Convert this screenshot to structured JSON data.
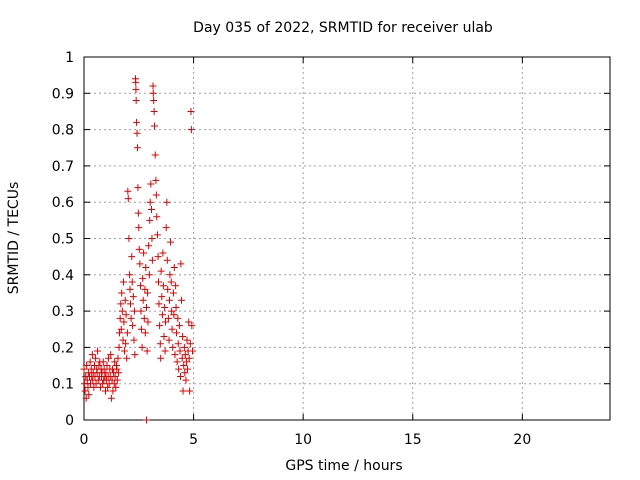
{
  "chart_data": {
    "type": "scatter",
    "title": "Day 035 of 2022, SRMTID for receiver ulab",
    "xlabel": "GPS time / hours",
    "ylabel": "SRMTID / TECUs",
    "xlim": [
      0,
      24
    ],
    "ylim": [
      0,
      1
    ],
    "xticks": [
      0,
      5,
      10,
      15,
      20
    ],
    "xtick_labels": [
      "0",
      "5",
      "10",
      "15",
      "20"
    ],
    "yticks": [
      0,
      0.1,
      0.2,
      0.3,
      0.4,
      0.5,
      0.6,
      0.7,
      0.8,
      0.9,
      1
    ],
    "ytick_labels": [
      "0",
      "0.1",
      "0.2",
      "0.3",
      "0.4",
      "0.5",
      "0.6",
      "0.7",
      "0.8",
      "0.9",
      "1"
    ],
    "grid": true,
    "marker": "+",
    "series": [
      {
        "name": "SRMTID",
        "color": "#e00000",
        "points": [
          [
            0.0,
            0.14
          ],
          [
            0.02,
            0.1
          ],
          [
            0.05,
            0.08
          ],
          [
            0.08,
            0.12
          ],
          [
            0.1,
            0.06
          ],
          [
            0.12,
            0.15
          ],
          [
            0.15,
            0.11
          ],
          [
            0.18,
            0.09
          ],
          [
            0.2,
            0.13
          ],
          [
            0.22,
            0.07
          ],
          [
            0.25,
            0.12
          ],
          [
            0.28,
            0.16
          ],
          [
            0.3,
            0.1
          ],
          [
            0.33,
            0.14
          ],
          [
            0.35,
            0.12
          ],
          [
            0.38,
            0.18
          ],
          [
            0.4,
            0.11
          ],
          [
            0.42,
            0.13
          ],
          [
            0.45,
            0.09
          ],
          [
            0.48,
            0.15
          ],
          [
            0.5,
            0.12
          ],
          [
            0.52,
            0.17
          ],
          [
            0.55,
            0.1
          ],
          [
            0.58,
            0.14
          ],
          [
            0.6,
            0.13
          ],
          [
            0.62,
            0.19
          ],
          [
            0.65,
            0.11
          ],
          [
            0.68,
            0.15
          ],
          [
            0.7,
            0.12
          ],
          [
            0.72,
            0.16
          ],
          [
            0.75,
            0.09
          ],
          [
            0.78,
            0.14
          ],
          [
            0.8,
            0.12
          ],
          [
            0.82,
            0.13
          ],
          [
            0.85,
            0.1
          ],
          [
            0.88,
            0.16
          ],
          [
            0.9,
            0.11
          ],
          [
            0.92,
            0.14
          ],
          [
            0.95,
            0.12
          ],
          [
            0.98,
            0.08
          ],
          [
            1.0,
            0.13
          ],
          [
            1.02,
            0.11
          ],
          [
            1.05,
            0.15
          ],
          [
            1.08,
            0.09
          ],
          [
            1.1,
            0.12
          ],
          [
            1.12,
            0.17
          ],
          [
            1.15,
            0.1
          ],
          [
            1.18,
            0.14
          ],
          [
            1.2,
            0.12
          ],
          [
            1.22,
            0.18
          ],
          [
            1.25,
            0.06
          ],
          [
            1.28,
            0.11
          ],
          [
            1.3,
            0.14
          ],
          [
            1.32,
            0.08
          ],
          [
            1.35,
            0.13
          ],
          [
            1.38,
            0.1
          ],
          [
            1.4,
            0.16
          ],
          [
            1.42,
            0.12
          ],
          [
            1.45,
            0.09
          ],
          [
            1.48,
            0.15
          ],
          [
            1.5,
            0.14
          ],
          [
            1.52,
            0.11
          ],
          [
            1.55,
            0.17
          ],
          [
            1.58,
            0.13
          ],
          [
            1.6,
            0.2
          ],
          [
            1.62,
            0.24
          ],
          [
            1.65,
            0.28
          ],
          [
            1.68,
            0.32
          ],
          [
            1.7,
            0.25
          ],
          [
            1.72,
            0.35
          ],
          [
            1.75,
            0.3
          ],
          [
            1.78,
            0.22
          ],
          [
            1.8,
            0.38
          ],
          [
            1.82,
            0.27
          ],
          [
            1.85,
            0.19
          ],
          [
            1.88,
            0.33
          ],
          [
            1.9,
            0.21
          ],
          [
            1.92,
            0.29
          ],
          [
            1.95,
            0.17
          ],
          [
            1.98,
            0.24
          ],
          [
            2.0,
            0.63
          ],
          [
            2.02,
            0.61
          ],
          [
            2.05,
            0.5
          ],
          [
            2.08,
            0.4
          ],
          [
            2.1,
            0.36
          ],
          [
            2.12,
            0.32
          ],
          [
            2.15,
            0.28
          ],
          [
            2.18,
            0.45
          ],
          [
            2.2,
            0.38
          ],
          [
            2.22,
            0.26
          ],
          [
            2.25,
            0.34
          ],
          [
            2.28,
            0.22
          ],
          [
            2.3,
            0.3
          ],
          [
            2.32,
            0.18
          ],
          [
            2.35,
            0.94
          ],
          [
            2.36,
            0.93
          ],
          [
            2.37,
            0.91
          ],
          [
            2.38,
            0.88
          ],
          [
            2.4,
            0.82
          ],
          [
            2.42,
            0.79
          ],
          [
            2.44,
            0.75
          ],
          [
            2.46,
            0.64
          ],
          [
            2.48,
            0.57
          ],
          [
            2.5,
            0.53
          ],
          [
            2.52,
            0.47
          ],
          [
            2.55,
            0.43
          ],
          [
            2.58,
            0.37
          ],
          [
            2.6,
            0.3
          ],
          [
            2.62,
            0.25
          ],
          [
            2.65,
            0.2
          ],
          [
            2.68,
            0.39
          ],
          [
            2.7,
            0.33
          ],
          [
            2.72,
            0.46
          ],
          [
            2.75,
            0.28
          ],
          [
            2.78,
            0.36
          ],
          [
            2.8,
            0.24
          ],
          [
            2.82,
            0.42
          ],
          [
            2.85,
            0.31
          ],
          [
            2.88,
            0.19
          ],
          [
            2.9,
            0.35
          ],
          [
            2.92,
            0.27
          ],
          [
            2.95,
            0.48
          ],
          [
            2.98,
            0.4
          ],
          [
            3.0,
            0.55
          ],
          [
            3.02,
            0.6
          ],
          [
            3.05,
            0.65
          ],
          [
            3.08,
            0.58
          ],
          [
            3.1,
            0.5
          ],
          [
            3.12,
            0.44
          ],
          [
            3.15,
            0.92
          ],
          [
            3.16,
            0.9
          ],
          [
            3.18,
            0.88
          ],
          [
            3.2,
            0.85
          ],
          [
            3.22,
            0.81
          ],
          [
            3.25,
            0.73
          ],
          [
            3.28,
            0.66
          ],
          [
            3.3,
            0.62
          ],
          [
            3.32,
            0.56
          ],
          [
            3.35,
            0.51
          ],
          [
            3.38,
            0.45
          ],
          [
            3.4,
            0.38
          ],
          [
            3.42,
            0.32
          ],
          [
            3.45,
            0.26
          ],
          [
            3.48,
            0.21
          ],
          [
            3.5,
            0.17
          ],
          [
            3.52,
            0.41
          ],
          [
            3.55,
            0.34
          ],
          [
            3.58,
            0.29
          ],
          [
            3.6,
            0.46
          ],
          [
            3.62,
            0.37
          ],
          [
            3.65,
            0.23
          ],
          [
            3.68,
            0.31
          ],
          [
            3.7,
            0.19
          ],
          [
            3.72,
            0.27
          ],
          [
            3.75,
            0.53
          ],
          [
            3.78,
            0.6
          ],
          [
            3.8,
            0.44
          ],
          [
            3.82,
            0.36
          ],
          [
            3.85,
            0.28
          ],
          [
            3.88,
            0.22
          ],
          [
            3.9,
            0.33
          ],
          [
            3.92,
            0.4
          ],
          [
            3.95,
            0.49
          ],
          [
            3.98,
            0.38
          ],
          [
            4.0,
            0.3
          ],
          [
            4.02,
            0.25
          ],
          [
            4.05,
            0.2
          ],
          [
            4.08,
            0.35
          ],
          [
            4.1,
            0.29
          ],
          [
            4.12,
            0.42
          ],
          [
            4.15,
            0.18
          ],
          [
            4.18,
            0.37
          ],
          [
            4.2,
            0.31
          ],
          [
            4.22,
            0.24
          ],
          [
            4.25,
            0.16
          ],
          [
            4.28,
            0.28
          ],
          [
            4.3,
            0.21
          ],
          [
            4.32,
            0.14
          ],
          [
            4.35,
            0.26
          ],
          [
            4.38,
            0.19
          ],
          [
            4.4,
            0.12
          ],
          [
            4.42,
            0.43
          ],
          [
            4.45,
            0.33
          ],
          [
            4.48,
            0.17
          ],
          [
            4.5,
            0.23
          ],
          [
            4.52,
            0.08
          ],
          [
            4.55,
            0.15
          ],
          [
            4.58,
            0.2
          ],
          [
            4.6,
            0.13
          ],
          [
            4.62,
            0.18
          ],
          [
            4.65,
            0.11
          ],
          [
            4.68,
            0.16
          ],
          [
            4.7,
            0.22
          ],
          [
            4.72,
            0.14
          ],
          [
            4.75,
            0.19
          ],
          [
            4.78,
            0.27
          ],
          [
            4.8,
            0.17
          ],
          [
            4.82,
            0.08
          ],
          [
            4.85,
            0.21
          ],
          [
            4.88,
            0.85
          ],
          [
            4.9,
            0.8
          ],
          [
            4.92,
            0.26
          ],
          [
            4.95,
            0.19
          ],
          [
            2.85,
            0.0
          ]
        ]
      }
    ]
  }
}
